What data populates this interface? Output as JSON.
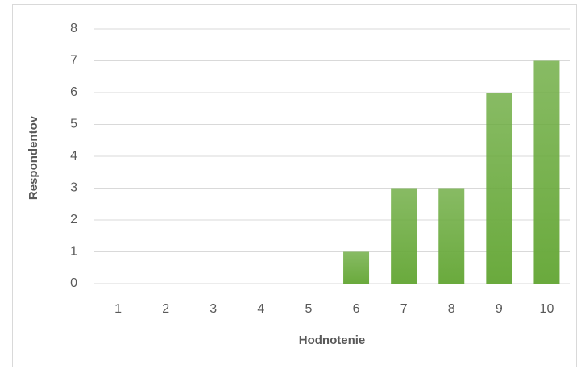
{
  "chart_data": {
    "type": "bar",
    "categories": [
      "1",
      "2",
      "3",
      "4",
      "5",
      "6",
      "7",
      "8",
      "9",
      "10"
    ],
    "values": [
      0,
      0,
      0,
      0,
      0,
      1,
      3,
      3,
      6,
      7
    ],
    "color": "#6aaa3d",
    "xlabel": "Hodnotenie",
    "ylabel": "Respondentov",
    "ylim": [
      0,
      8
    ],
    "yticks": [
      0,
      1,
      2,
      3,
      4,
      5,
      6,
      7,
      8
    ],
    "grid": true
  }
}
